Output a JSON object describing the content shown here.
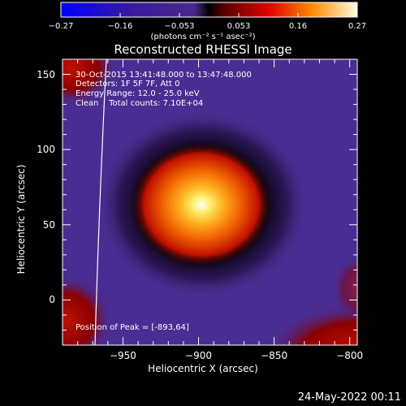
{
  "colorbar": {
    "ticks": [
      "-0.27",
      "-0.16",
      "-0.053",
      "0.053",
      "0.16",
      "0.27"
    ],
    "units": "(photons cm⁻² s⁻¹ asec⁻²)"
  },
  "header": {
    "title": "Reconstructed RHESSI Image"
  },
  "info": {
    "line1": "30-Oct-2015 13:41:48.000 to 13:47:48.000",
    "line2": "Detectors: 1F 5F 7F, Att 0",
    "line3": "Energy Range: 12.0 - 25.0 keV",
    "line4": "Clean    Total counts: 7.10E+04",
    "peak": "Position of Peak = [-893,64]"
  },
  "footer": {
    "date": "24-May-2022 00:11"
  },
  "chart_data": {
    "type": "heatmap",
    "title": "Reconstructed RHESSI Image",
    "xlabel": "Heliocentric X (arcsec)",
    "ylabel": "Heliocentric Y (arcsec)",
    "xlim": [
      -990,
      -795
    ],
    "ylim": [
      -30,
      160
    ],
    "xticks": [
      -950,
      -900,
      -850,
      -800
    ],
    "yticks": [
      0,
      50,
      100,
      150
    ],
    "xtick_labels": [
      "−950",
      "−900",
      "−850",
      "−800"
    ],
    "ytick_labels": [
      "0",
      "50",
      "100",
      "150"
    ],
    "colorbar_range": [
      -0.27,
      0.27
    ],
    "colormap": [
      "#0000ff",
      "#3a1896",
      "#5a2db0",
      "#000000",
      "#800000",
      "#e00000",
      "#ff9000",
      "#ffffff"
    ],
    "peak": {
      "x": -893,
      "y": 64,
      "value": 0.27
    },
    "grid": false
  }
}
